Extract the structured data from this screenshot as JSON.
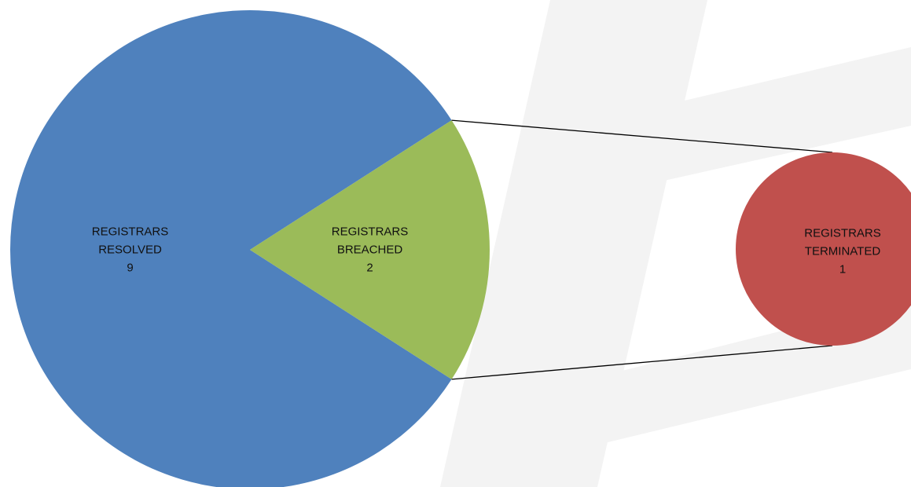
{
  "chart_data": {
    "type": "pie-of-pie",
    "categories": [
      "REGISTRARS RESOLVED",
      "REGISTRARS BREACHED"
    ],
    "values": [
      9,
      2
    ],
    "colors": [
      "#4f81bd",
      "#9bbb59"
    ],
    "detail": {
      "categories": [
        "REGISTRARS TERMINATED"
      ],
      "values": [
        1
      ],
      "colors": [
        "#c0504d"
      ]
    }
  }
}
